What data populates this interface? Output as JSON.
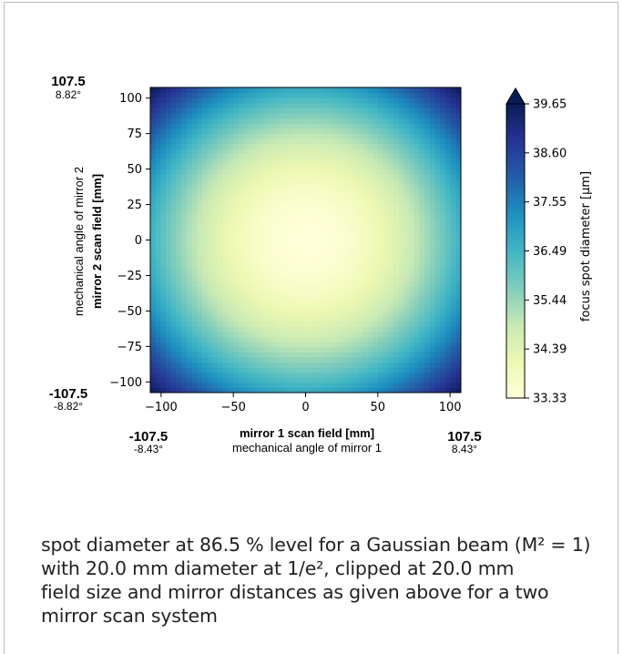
{
  "chart_data": {
    "type": "heatmap",
    "title": "",
    "xlabel": "mirror 1 scan field [mm]",
    "xlabel_secondary": "mechanical angle of mirror 1",
    "ylabel": "mirror 2 scan field [mm]",
    "ylabel_secondary": "mechanical angle of mirror 2",
    "xlim": [
      -107.5,
      107.5
    ],
    "ylim": [
      -107.5,
      107.5
    ],
    "xticks": [
      -100,
      -50,
      0,
      50,
      100
    ],
    "yticks": [
      100,
      75,
      50,
      25,
      0,
      -25,
      -50,
      -75,
      -100
    ],
    "corner_labels": {
      "y_top": {
        "value": "107.5",
        "angle": "8.82°"
      },
      "y_bottom": {
        "value": "-107.5",
        "angle": "-8.82°"
      },
      "x_left": {
        "value": "-107.5",
        "angle": "-8.43°"
      },
      "x_right": {
        "value": "107.5",
        "angle": "8.43°"
      }
    },
    "z_min": 33.33,
    "z_max": 39.65,
    "z_center": 33.33,
    "z_edge_mid_top_bottom": 36.8,
    "z_edge_mid_left_right": 36.6,
    "z_corner": 39.65,
    "colormap": [
      "#ffffd9",
      "#edf8b1",
      "#c7e9b4",
      "#7fcdbb",
      "#41b6c4",
      "#1d91c0",
      "#225ea8",
      "#253494",
      "#081d58"
    ],
    "colorbar": {
      "label": "focus spot diameter [μm]",
      "ticks": [
        "39.65",
        "38.60",
        "37.55",
        "36.49",
        "35.44",
        "34.39",
        "33.33"
      ],
      "extend": "max"
    }
  },
  "caption": {
    "lines": [
      "spot diameter at 86.5 % level for a Gaussian beam (M² = 1)",
      "with 20.0 mm diameter at 1/e², clipped at 20.0  mm",
      "field size and mirror distances as given above for a two",
      "mirror scan system"
    ]
  }
}
